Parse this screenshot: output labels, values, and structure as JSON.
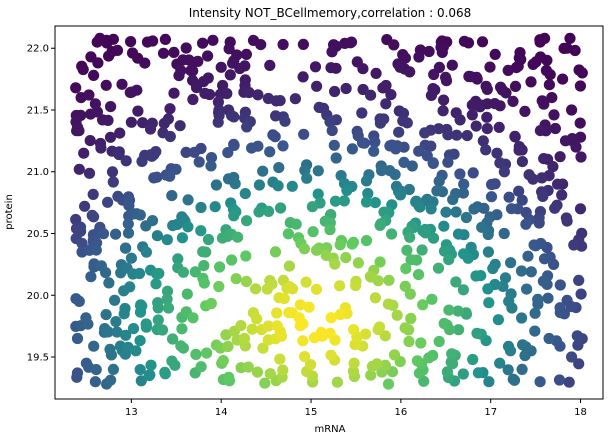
{
  "chart_data": {
    "type": "scatter",
    "title": "Intensity NOT_BCellmemory,correlation : 0.068",
    "xlabel": "mRNA",
    "ylabel": "protein",
    "xlim": [
      12.15,
      18.25
    ],
    "ylim": [
      19.16,
      22.18
    ],
    "x_ticks": [
      13,
      14,
      15,
      16,
      17,
      18
    ],
    "y_ticks": [
      19.5,
      20.0,
      20.5,
      21.0,
      21.5,
      22.0
    ],
    "grid": false,
    "legend": "none",
    "colormap": "viridis (color encodes point density)",
    "colors": [
      "#440154",
      "#3b528b",
      "#21918c",
      "#5ec962",
      "#fde725"
    ],
    "n_points": 900,
    "points": [
      [
        12.38,
        21.68
      ],
      [
        12.4,
        21.45
      ],
      [
        12.42,
        21.02
      ],
      [
        12.44,
        21.6
      ],
      [
        12.47,
        21.15
      ],
      [
        12.55,
        21.93
      ],
      [
        12.58,
        21.78
      ],
      [
        12.6,
        21.55
      ],
      [
        12.62,
        22.05
      ],
      [
        12.65,
        22.08
      ],
      [
        12.68,
        21.42
      ],
      [
        12.72,
        21.7
      ],
      [
        13.0,
        21.4
      ],
      [
        13.15,
        21.88
      ],
      [
        13.18,
        22.05
      ],
      [
        13.55,
        21.82
      ],
      [
        14.1,
        22.05
      ],
      [
        14.28,
        21.95
      ],
      [
        15.05,
        21.85
      ],
      [
        15.45,
        22.05
      ],
      [
        16.05,
        21.92
      ],
      [
        16.45,
        22.05
      ],
      [
        16.85,
        21.75
      ],
      [
        17.05,
        21.95
      ],
      [
        17.55,
        22.05
      ],
      [
        17.6,
        22.08
      ],
      [
        17.62,
        21.82
      ],
      [
        17.68,
        21.6
      ],
      [
        17.72,
        21.35
      ],
      [
        17.8,
        21.75
      ],
      [
        17.85,
        22.0
      ],
      [
        17.9,
        21.5
      ],
      [
        17.95,
        21.2
      ],
      [
        18.0,
        21.28
      ],
      [
        18.02,
        21.8
      ],
      [
        18.0,
        20.7
      ],
      [
        17.98,
        20.45
      ],
      [
        17.98,
        20.12
      ],
      [
        17.95,
        19.9
      ],
      [
        17.9,
        19.5
      ],
      [
        17.85,
        20.6
      ],
      [
        17.8,
        20.9
      ],
      [
        17.82,
        19.85
      ],
      [
        17.7,
        20.25
      ],
      [
        17.65,
        19.65
      ],
      [
        17.58,
        20.8
      ],
      [
        17.55,
        19.3
      ],
      [
        17.5,
        20.4
      ],
      [
        17.45,
        19.55
      ],
      [
        17.4,
        20.05
      ],
      [
        17.35,
        19.4
      ],
      [
        17.3,
        20.7
      ],
      [
        17.25,
        19.32
      ],
      [
        17.2,
        19.95
      ],
      [
        17.15,
        20.5
      ],
      [
        17.1,
        19.45
      ],
      [
        17.05,
        20.25
      ],
      [
        16.98,
        19.3
      ],
      [
        16.9,
        20.55
      ],
      [
        16.8,
        19.48
      ],
      [
        12.4,
        19.65
      ],
      [
        12.42,
        19.95
      ],
      [
        12.45,
        20.35
      ],
      [
        12.48,
        20.72
      ],
      [
        12.5,
        19.45
      ],
      [
        12.55,
        20.15
      ],
      [
        12.6,
        19.3
      ],
      [
        12.65,
        20.55
      ],
      [
        12.7,
        19.7
      ],
      [
        12.75,
        20.1
      ],
      [
        12.8,
        19.4
      ],
      [
        12.85,
        20.8
      ],
      [
        12.92,
        19.85
      ],
      [
        13.0,
        20.3
      ],
      [
        13.05,
        19.55
      ],
      [
        13.1,
        20.65
      ],
      [
        13.2,
        19.35
      ],
      [
        13.25,
        20.95
      ],
      [
        13.3,
        19.8
      ],
      [
        13.4,
        20.45
      ]
    ]
  }
}
